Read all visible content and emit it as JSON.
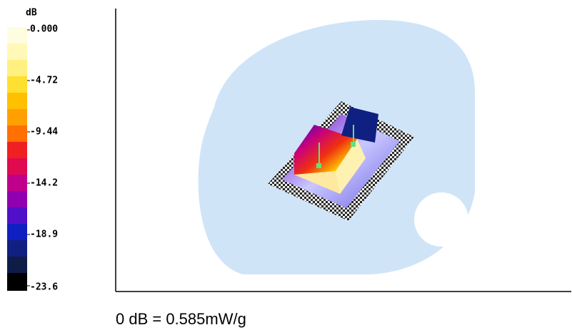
{
  "colorbar": {
    "unit": "dB",
    "labels": [
      "0.000",
      "-4.72",
      "-9.44",
      "-14.2",
      "-18.9",
      "-23.6"
    ]
  },
  "caption": "0 dB = 0.585mW/g"
}
